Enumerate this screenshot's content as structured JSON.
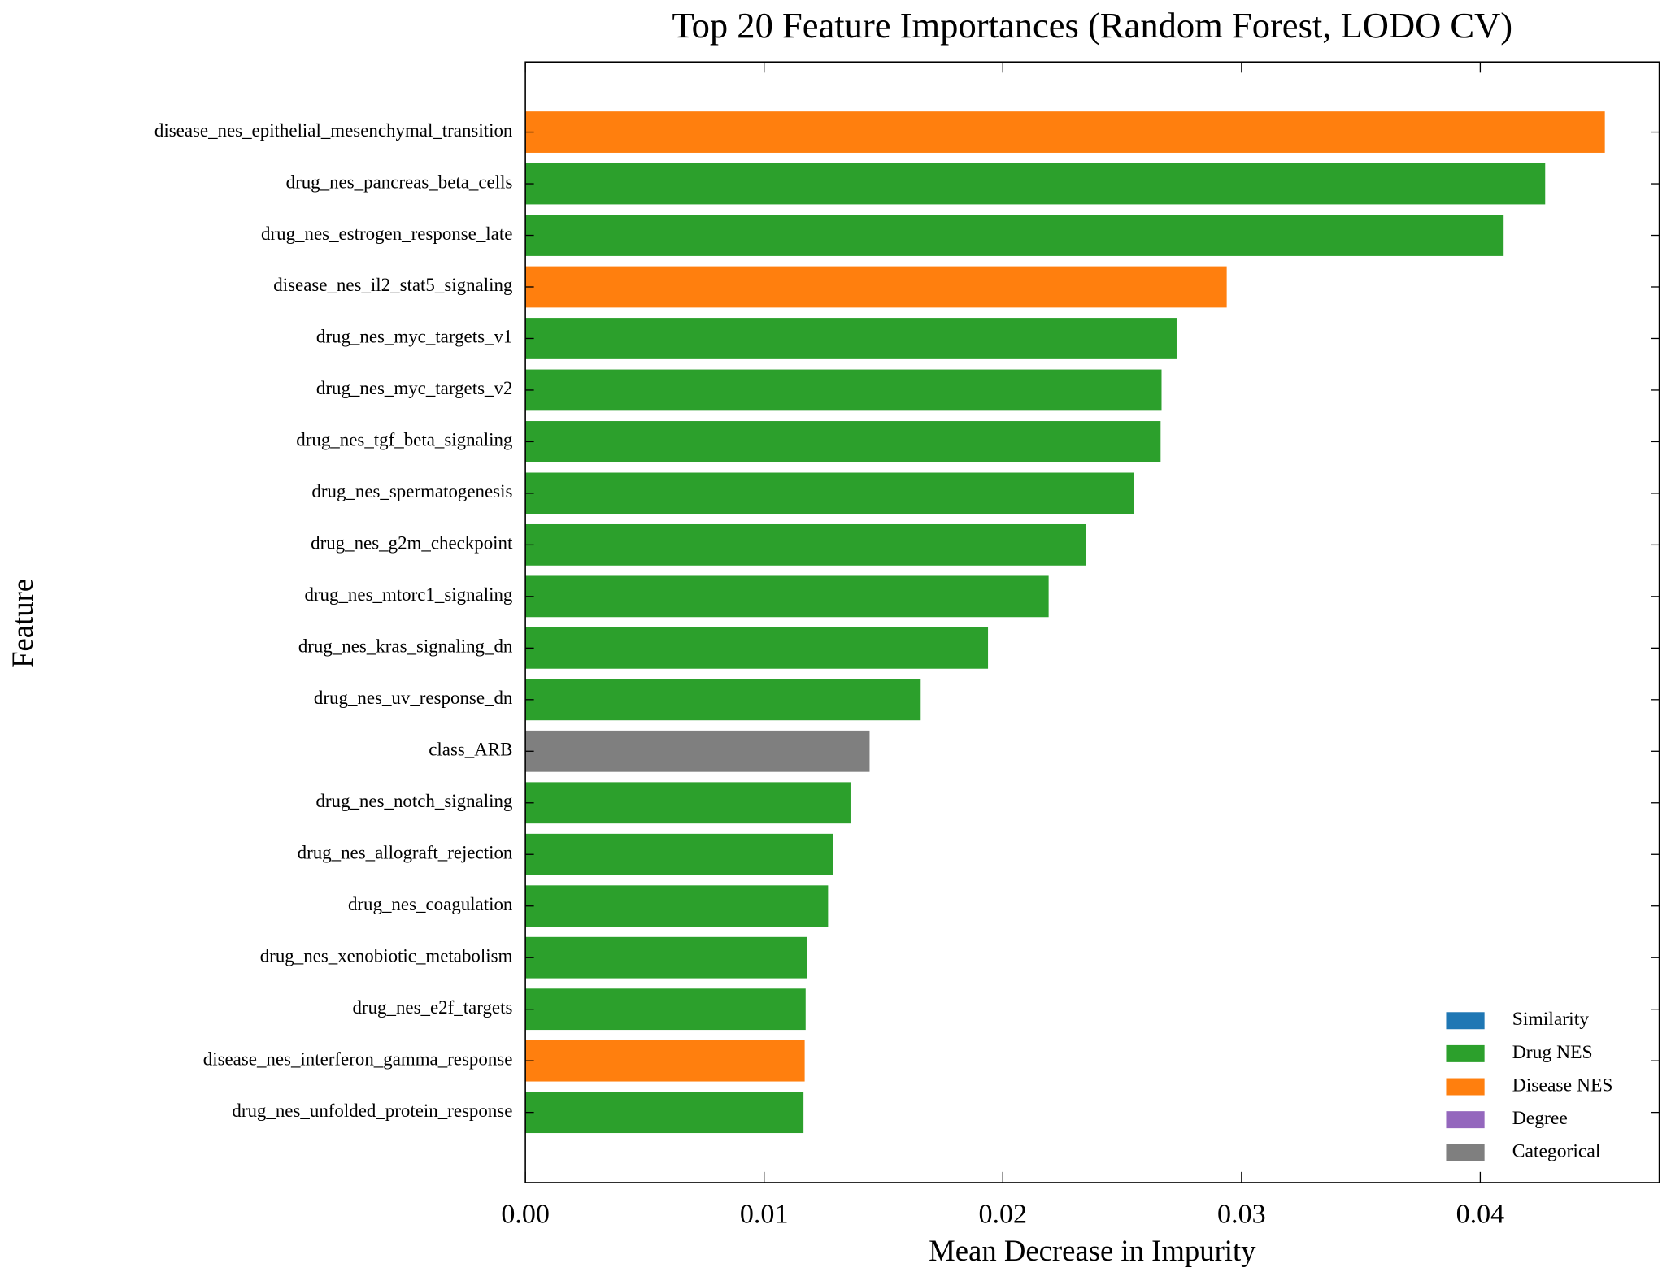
{
  "chart_data": {
    "type": "barh",
    "title": "Top 20 Feature Importances (Random Forest, LODO CV)",
    "x_label": "Mean Decrease in Impurity",
    "y_label": "Feature",
    "categories": [
      "disease_nes_epithelial_mesenchymal_transition",
      "drug_nes_pancreas_beta_cells",
      "drug_nes_estrogen_response_late",
      "disease_nes_il2_stat5_signaling",
      "drug_nes_myc_targets_v1",
      "drug_nes_myc_targets_v2",
      "drug_nes_tgf_beta_signaling",
      "drug_nes_spermatogenesis",
      "drug_nes_g2m_checkpoint",
      "drug_nes_mtorc1_signaling",
      "drug_nes_kras_signaling_dn",
      "drug_nes_uv_response_dn",
      "class_ARB",
      "drug_nes_notch_signaling",
      "drug_nes_allograft_rejection",
      "drug_nes_coagulation",
      "drug_nes_xenobiotic_metabolism",
      "drug_nes_e2f_targets",
      "disease_nes_interferon_gamma_response",
      "drug_nes_unfolded_protein_response"
    ],
    "values": [
      0.04522,
      0.04272,
      0.04098,
      0.02938,
      0.02728,
      0.02665,
      0.02661,
      0.02549,
      0.02348,
      0.02192,
      0.01938,
      0.01656,
      0.01442,
      0.01362,
      0.0129,
      0.01268,
      0.01179,
      0.01174,
      0.0117,
      0.01165
    ],
    "colors": [
      "#ff7f0e",
      "#2ca02c",
      "#2ca02c",
      "#ff7f0e",
      "#2ca02c",
      "#2ca02c",
      "#2ca02c",
      "#2ca02c",
      "#2ca02c",
      "#2ca02c",
      "#2ca02c",
      "#2ca02c",
      "#7f7f7f",
      "#2ca02c",
      "#2ca02c",
      "#2ca02c",
      "#2ca02c",
      "#2ca02c",
      "#ff7f0e",
      "#2ca02c"
    ],
    "legend": [
      {
        "name": "Similarity",
        "color": "#1f77b4"
      },
      {
        "name": "Drug NES",
        "color": "#2ca02c"
      },
      {
        "name": "Disease NES",
        "color": "#ff7f0e"
      },
      {
        "name": "Degree",
        "color": "#9467bd"
      },
      {
        "name": "Categorical",
        "color": "#7f7f7f"
      }
    ],
    "legend_position": "lower right",
    "xlim": [
      0,
      0.0475
    ],
    "xticks": [
      {
        "value": 0,
        "label": "0.00"
      },
      {
        "value": 0.01,
        "label": "0.01"
      },
      {
        "value": 0.02,
        "label": "0.02"
      },
      {
        "value": 0.03,
        "label": "0.03"
      },
      {
        "value": 0.04,
        "label": "0.04"
      }
    ],
    "grid": false
  }
}
